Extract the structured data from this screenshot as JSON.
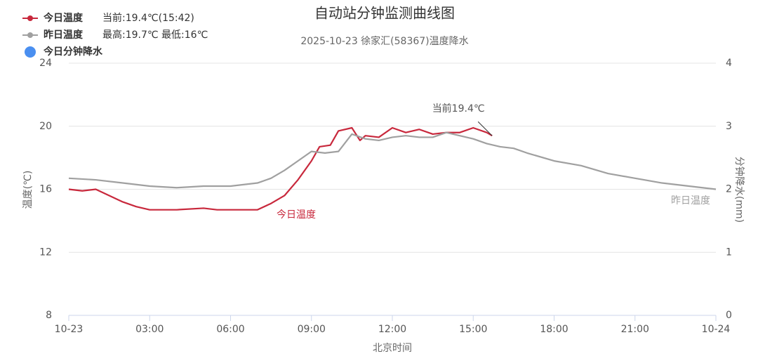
{
  "chart_data": {
    "type": "line",
    "title": "自动站分钟监测曲线图",
    "subtitle": "2025-10-23 徐家汇(58367)温度降水",
    "xlabel": "北京时间",
    "ylabel": "温度(℃)",
    "y2label": "分钟降水(mm)",
    "xlim": [
      0,
      24
    ],
    "xticks": [
      {
        "value": 0,
        "label": "10-23"
      },
      {
        "value": 3,
        "label": "03:00"
      },
      {
        "value": 6,
        "label": "06:00"
      },
      {
        "value": 9,
        "label": "09:00"
      },
      {
        "value": 12,
        "label": "12:00"
      },
      {
        "value": 15,
        "label": "15:00"
      },
      {
        "value": 18,
        "label": "18:00"
      },
      {
        "value": 21,
        "label": "21:00"
      },
      {
        "value": 24,
        "label": "10-24"
      }
    ],
    "ylim": [
      8,
      24
    ],
    "yticks": [
      8,
      12,
      16,
      20,
      24
    ],
    "y2lim": [
      0,
      4
    ],
    "y2ticks": [
      0,
      1,
      2,
      3,
      4
    ],
    "grid": true,
    "legend": "top-left",
    "annotations": [
      {
        "text": "当前19.4℃",
        "x": 15.7,
        "y": 19.4
      }
    ],
    "series": [
      {
        "name": "今日温度",
        "color": "#c8283c",
        "legend_text": "当前:19.4℃(15:42)",
        "x": [
          0,
          0.5,
          1,
          1.5,
          2,
          2.5,
          3,
          4,
          5,
          5.5,
          6,
          7,
          7.5,
          8,
          8.5,
          9,
          9.3,
          9.7,
          10,
          10.5,
          10.8,
          11,
          11.5,
          12,
          12.5,
          13,
          13.5,
          14,
          14.5,
          15,
          15.5,
          15.7
        ],
        "values": [
          16.0,
          15.9,
          16.0,
          15.6,
          15.2,
          14.9,
          14.7,
          14.7,
          14.8,
          14.7,
          14.7,
          14.7,
          15.1,
          15.6,
          16.6,
          17.8,
          18.7,
          18.8,
          19.7,
          19.9,
          19.1,
          19.4,
          19.3,
          19.9,
          19.6,
          19.8,
          19.5,
          19.6,
          19.6,
          19.9,
          19.6,
          19.4
        ]
      },
      {
        "name": "昨日温度",
        "color": "#a0a0a0",
        "legend_text": "最高:19.7℃ 最低:16℃",
        "x": [
          0,
          1,
          2,
          3,
          4,
          5,
          6,
          7,
          7.5,
          8,
          8.5,
          9,
          9.5,
          10,
          10.5,
          11,
          11.5,
          12,
          12.5,
          13,
          13.5,
          14,
          14.5,
          15,
          15.5,
          16,
          16.5,
          17,
          18,
          19,
          20,
          21,
          22,
          23,
          24
        ],
        "values": [
          16.7,
          16.6,
          16.4,
          16.2,
          16.1,
          16.2,
          16.2,
          16.4,
          16.7,
          17.2,
          17.8,
          18.4,
          18.3,
          18.4,
          19.5,
          19.2,
          19.1,
          19.3,
          19.4,
          19.3,
          19.3,
          19.6,
          19.4,
          19.2,
          18.9,
          18.7,
          18.6,
          18.3,
          17.8,
          17.5,
          17.0,
          16.7,
          16.4,
          16.2,
          16.0
        ]
      },
      {
        "name": "今日分钟降水",
        "color": "#4a8ff0",
        "axis": "y2",
        "x": [],
        "values": []
      }
    ]
  }
}
